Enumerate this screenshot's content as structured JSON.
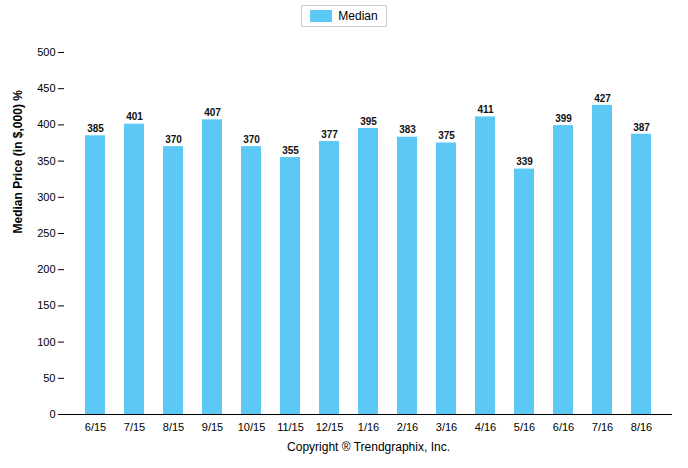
{
  "chart_data": {
    "type": "bar",
    "categories": [
      "6/15",
      "7/15",
      "8/15",
      "9/15",
      "10/15",
      "11/15",
      "12/15",
      "1/16",
      "2/16",
      "3/16",
      "4/16",
      "5/16",
      "6/16",
      "7/16",
      "8/16"
    ],
    "series": [
      {
        "name": "Median",
        "color": "#5BC8F5",
        "values": [
          385,
          401,
          370,
          407,
          370,
          355,
          377,
          395,
          383,
          375,
          411,
          339,
          399,
          427,
          387
        ]
      }
    ],
    "ylabel": "Median Price (in $,000) %",
    "xlabel": "Copyright ® Trendgraphix, Inc.",
    "ylim": [
      0,
      500
    ],
    "yticks": [
      0,
      50,
      100,
      150,
      200,
      250,
      300,
      350,
      400,
      450,
      500
    ],
    "grid": false,
    "legend": "top",
    "data_labels": true
  }
}
